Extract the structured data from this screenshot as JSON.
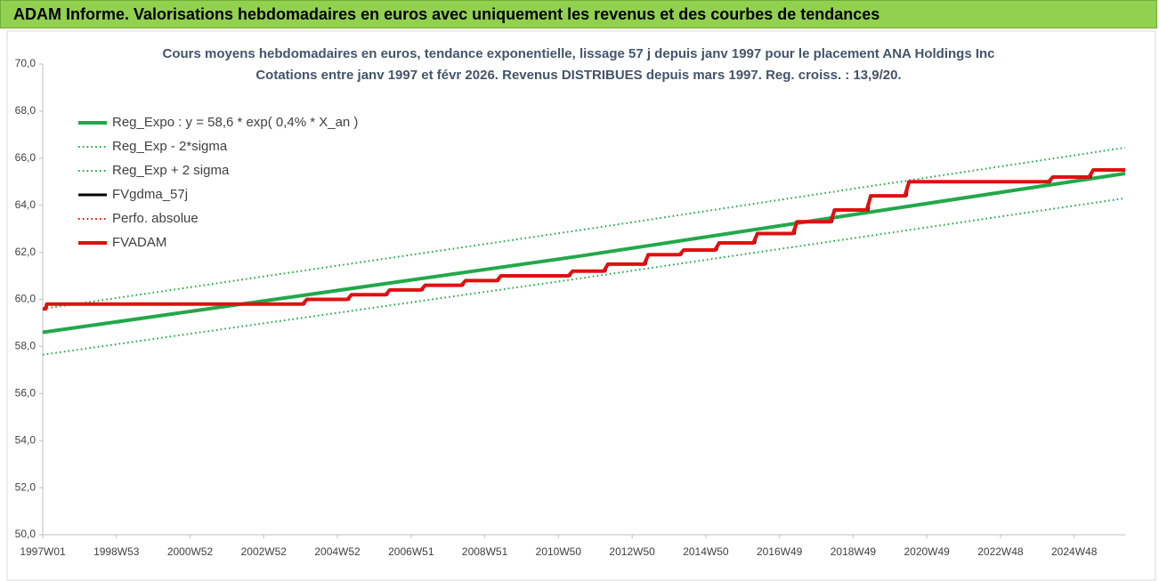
{
  "header": {
    "title": "ADAM Informe. Valorisations hebdomadaires en euros avec uniquement les revenus et des courbes de tendances"
  },
  "chart_data": {
    "type": "line",
    "title": "Cours moyens hebdomadaires en euros, tendance exponentielle, lissage 57 j depuis janv 1997 pour le placement ANA Holdings Inc",
    "subtitle": "Cotations entre janv 1997 et févr 2026. Revenus DISTRIBUES depuis mars 1997. Reg. croiss. : 13,9/20.",
    "xlim": [
      0,
      1528
    ],
    "xticks": [
      {
        "value": 0,
        "label": "1997W01"
      },
      {
        "value": 104,
        "label": "1998W53"
      },
      {
        "value": 208,
        "label": "2000W52"
      },
      {
        "value": 312,
        "label": "2002W52"
      },
      {
        "value": 416,
        "label": "2004W52"
      },
      {
        "value": 520,
        "label": "2006W51"
      },
      {
        "value": 624,
        "label": "2008W51"
      },
      {
        "value": 728,
        "label": "2010W50"
      },
      {
        "value": 832,
        "label": "2012W50"
      },
      {
        "value": 936,
        "label": "2014W50"
      },
      {
        "value": 1040,
        "label": "2016W49"
      },
      {
        "value": 1144,
        "label": "2018W49"
      },
      {
        "value": 1248,
        "label": "2020W49"
      },
      {
        "value": 1352,
        "label": "2022W48"
      },
      {
        "value": 1456,
        "label": "2024W48"
      }
    ],
    "ylim": [
      50,
      70
    ],
    "yticks": [
      {
        "value": 50,
        "label": "50,0"
      },
      {
        "value": 52,
        "label": "52,0"
      },
      {
        "value": 54,
        "label": "54,0"
      },
      {
        "value": 56,
        "label": "56,0"
      },
      {
        "value": 58,
        "label": "58,0"
      },
      {
        "value": 60,
        "label": "60,0"
      },
      {
        "value": 62,
        "label": "62,0"
      },
      {
        "value": 64,
        "label": "64,0"
      },
      {
        "value": 66,
        "label": "66,0"
      },
      {
        "value": 68,
        "label": "68,0"
      },
      {
        "value": 70,
        "label": "70,0"
      }
    ],
    "legend": "top-left",
    "series": [
      {
        "name": "Reg_Expo : y = 58,6 * exp( 0,4% *  X_an )",
        "color": "#22a84a",
        "style": "solid",
        "width": 4,
        "x": [
          0,
          760,
          1528
        ],
        "values": [
          58.6,
          61.85,
          65.35
        ]
      },
      {
        "name": "Reg_Exp - 2*sigma",
        "color": "#22a84a",
        "style": "dotted",
        "width": 2,
        "x": [
          0,
          760,
          1528
        ],
        "values": [
          57.65,
          60.9,
          64.3
        ]
      },
      {
        "name": "Reg_Exp + 2 sigma",
        "color": "#22a84a",
        "style": "dotted",
        "width": 2,
        "x": [
          0,
          760,
          1528
        ],
        "values": [
          59.6,
          62.95,
          66.45
        ]
      },
      {
        "name": "FVgdma_57j",
        "color": "#000000",
        "style": "solid",
        "width": 3,
        "x": [
          0,
          4,
          5,
          369,
          372,
          432,
          435,
          486,
          489,
          536,
          539,
          593,
          596,
          643,
          646,
          744,
          747,
          794,
          797,
          851,
          854,
          901,
          904,
          951,
          954,
          1005,
          1008,
          1061,
          1064,
          1114,
          1117,
          1165,
          1168,
          1219,
          1222,
          1422,
          1425,
          1479,
          1482,
          1528
        ],
        "values": [
          59.6,
          59.6,
          59.8,
          59.8,
          60.0,
          60.0,
          60.2,
          60.2,
          60.4,
          60.4,
          60.6,
          60.6,
          60.8,
          60.8,
          61.0,
          61.0,
          61.2,
          61.2,
          61.5,
          61.5,
          61.9,
          61.9,
          62.1,
          62.1,
          62.4,
          62.4,
          62.8,
          62.8,
          63.3,
          63.3,
          63.8,
          63.8,
          64.4,
          64.4,
          65.0,
          65.0,
          65.2,
          65.2,
          65.5,
          65.5
        ]
      },
      {
        "name": "Perfo. absolue",
        "color": "#e01010",
        "style": "dotted",
        "width": 2,
        "x": [
          0,
          4,
          5,
          369,
          372,
          432,
          435,
          486,
          489,
          536,
          539,
          593,
          596,
          643,
          646,
          744,
          747,
          794,
          797,
          851,
          854,
          901,
          904,
          951,
          954,
          1005,
          1008,
          1061,
          1064,
          1114,
          1117,
          1165,
          1168,
          1219,
          1222,
          1422,
          1425,
          1479,
          1482,
          1528
        ],
        "values": [
          59.6,
          59.6,
          59.8,
          59.8,
          60.0,
          60.0,
          60.2,
          60.2,
          60.4,
          60.4,
          60.6,
          60.6,
          60.8,
          60.8,
          61.0,
          61.0,
          61.2,
          61.2,
          61.5,
          61.5,
          61.9,
          61.9,
          62.1,
          62.1,
          62.4,
          62.4,
          62.8,
          62.8,
          63.3,
          63.3,
          63.8,
          63.8,
          64.4,
          64.4,
          65.0,
          65.0,
          65.2,
          65.2,
          65.5,
          65.5
        ]
      },
      {
        "name": "FVADAM",
        "color": "#e01010",
        "style": "solid",
        "width": 4,
        "x": [
          0,
          4,
          6,
          367,
          373,
          430,
          436,
          484,
          490,
          534,
          540,
          591,
          597,
          641,
          647,
          742,
          748,
          792,
          798,
          849,
          855,
          899,
          905,
          949,
          955,
          1003,
          1009,
          1059,
          1065,
          1112,
          1118,
          1163,
          1169,
          1217,
          1223,
          1420,
          1426,
          1477,
          1483,
          1528
        ],
        "values": [
          59.6,
          59.6,
          59.8,
          59.8,
          60.0,
          60.0,
          60.2,
          60.2,
          60.4,
          60.4,
          60.6,
          60.6,
          60.8,
          60.8,
          61.0,
          61.0,
          61.2,
          61.2,
          61.5,
          61.5,
          61.9,
          61.9,
          62.1,
          62.1,
          62.4,
          62.4,
          62.8,
          62.8,
          63.3,
          63.3,
          63.8,
          63.8,
          64.4,
          64.4,
          65.0,
          65.0,
          65.2,
          65.2,
          65.5,
          65.5
        ]
      }
    ]
  }
}
